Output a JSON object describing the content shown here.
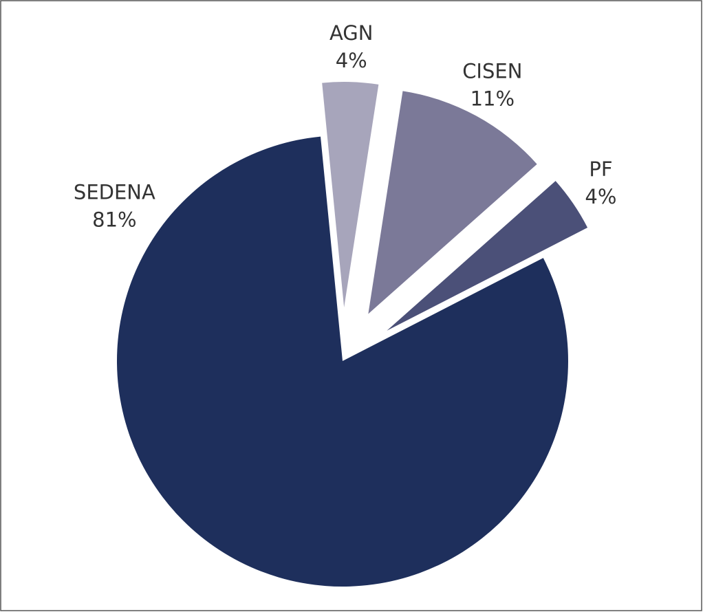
{
  "chart_data": {
    "type": "pie",
    "categories": [
      "AGN",
      "CISEN",
      "PF",
      "SEDENA"
    ],
    "values": [
      4,
      11,
      4,
      81
    ],
    "value_labels": [
      "4%",
      "11%",
      "4%",
      "81%"
    ],
    "colors": [
      "#a7a5bb",
      "#7b7998",
      "#4b5078",
      "#1e2f5c"
    ],
    "explode": [
      true,
      true,
      true,
      false
    ]
  }
}
